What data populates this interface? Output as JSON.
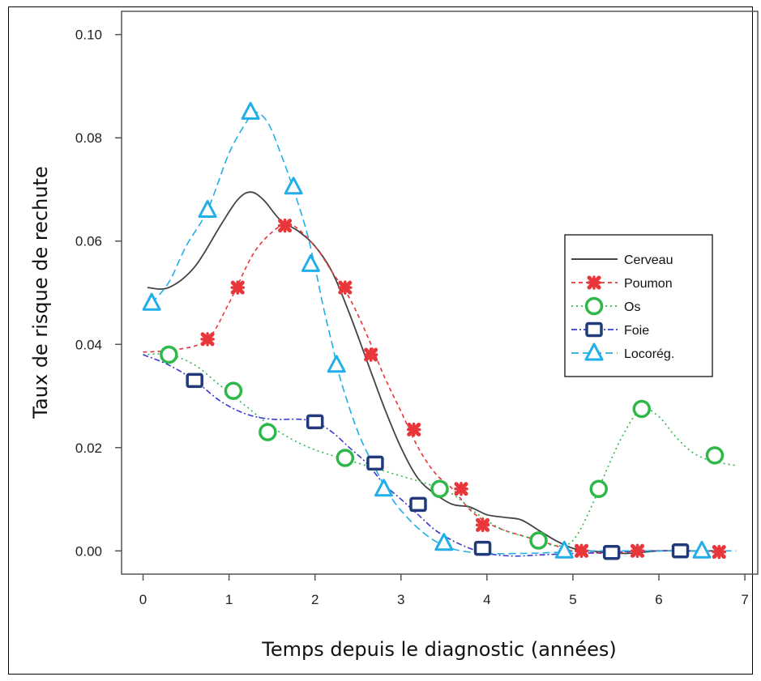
{
  "chart_data": {
    "type": "line",
    "xlabel": "Temps depuis le diagnostic (années)",
    "ylabel": "Taux de risque de rechute",
    "xlim": [
      -0.25,
      7.15
    ],
    "ylim": [
      -0.0045,
      0.1045
    ],
    "xticks": [
      0,
      1,
      2,
      3,
      4,
      5,
      6,
      7
    ],
    "yticks": [
      0.0,
      0.02,
      0.04,
      0.06,
      0.08,
      0.1
    ],
    "ytick_labels": [
      "0.00",
      "0.02",
      "0.04",
      "0.06",
      "0.08",
      "0.10"
    ],
    "legend_position": "right",
    "series": [
      {
        "name": "Cerveau",
        "color": "#444444",
        "dash": "solid",
        "marker": "none",
        "curve": [
          [
            0.05,
            0.051
          ],
          [
            0.3,
            0.051
          ],
          [
            0.6,
            0.055
          ],
          [
            0.9,
            0.063
          ],
          [
            1.1,
            0.068
          ],
          [
            1.25,
            0.0695
          ],
          [
            1.4,
            0.068
          ],
          [
            1.6,
            0.064
          ],
          [
            1.8,
            0.062
          ],
          [
            2.0,
            0.059
          ],
          [
            2.2,
            0.054
          ],
          [
            2.4,
            0.046
          ],
          [
            2.6,
            0.037
          ],
          [
            2.8,
            0.028
          ],
          [
            3.0,
            0.02
          ],
          [
            3.2,
            0.014
          ],
          [
            3.4,
            0.011
          ],
          [
            3.6,
            0.009
          ],
          [
            3.8,
            0.0085
          ],
          [
            4.0,
            0.007
          ],
          [
            4.2,
            0.0065
          ],
          [
            4.4,
            0.006
          ],
          [
            4.6,
            0.004
          ],
          [
            4.8,
            0.002
          ],
          [
            5.0,
            0.0005
          ],
          [
            5.2,
            0.0
          ],
          [
            5.6,
            -0.0005
          ],
          [
            6.0,
            0.0
          ],
          [
            6.4,
            0.0
          ],
          [
            6.7,
            0.0
          ]
        ],
        "points": []
      },
      {
        "name": "Poumon",
        "color": "#e8363b",
        "dash": "5,4",
        "marker": "cross",
        "curve": [
          [
            0.0,
            0.0385
          ],
          [
            0.4,
            0.039
          ],
          [
            0.75,
            0.041
          ],
          [
            1.0,
            0.048
          ],
          [
            1.3,
            0.058
          ],
          [
            1.6,
            0.063
          ],
          [
            1.75,
            0.063
          ],
          [
            2.0,
            0.059
          ],
          [
            2.2,
            0.054
          ],
          [
            2.4,
            0.049
          ],
          [
            2.6,
            0.042
          ],
          [
            2.8,
            0.034
          ],
          [
            3.0,
            0.027
          ],
          [
            3.2,
            0.02
          ],
          [
            3.4,
            0.015
          ],
          [
            3.6,
            0.012
          ],
          [
            3.8,
            0.008
          ],
          [
            4.0,
            0.0055
          ],
          [
            4.2,
            0.004
          ],
          [
            4.4,
            0.003
          ],
          [
            4.6,
            0.002
          ],
          [
            4.8,
            0.001
          ],
          [
            5.0,
            0.0
          ],
          [
            5.4,
            -0.0005
          ],
          [
            5.8,
            0.0
          ],
          [
            6.2,
            0.0
          ],
          [
            6.7,
            0.0
          ]
        ],
        "points": [
          [
            0.75,
            0.041
          ],
          [
            1.1,
            0.051
          ],
          [
            1.65,
            0.063
          ],
          [
            2.35,
            0.051
          ],
          [
            2.65,
            0.038
          ],
          [
            3.15,
            0.0235
          ],
          [
            3.7,
            0.012
          ],
          [
            3.95,
            0.005
          ],
          [
            5.1,
            0.0
          ],
          [
            5.75,
            0.0
          ],
          [
            6.7,
            -0.0002
          ]
        ]
      },
      {
        "name": "Os",
        "color": "#2fb84a",
        "dash": "2,4",
        "marker": "circle",
        "curve": [
          [
            0.0,
            0.038
          ],
          [
            0.3,
            0.038
          ],
          [
            0.6,
            0.036
          ],
          [
            0.9,
            0.032
          ],
          [
            1.2,
            0.028
          ],
          [
            1.5,
            0.024
          ],
          [
            1.8,
            0.021
          ],
          [
            2.1,
            0.019
          ],
          [
            2.4,
            0.0175
          ],
          [
            2.7,
            0.016
          ],
          [
            3.0,
            0.0145
          ],
          [
            3.3,
            0.013
          ],
          [
            3.6,
            0.011
          ],
          [
            3.9,
            0.007
          ],
          [
            4.2,
            0.004
          ],
          [
            4.5,
            0.0025
          ],
          [
            4.8,
            0.001
          ],
          [
            5.0,
            0.002
          ],
          [
            5.2,
            0.008
          ],
          [
            5.4,
            0.016
          ],
          [
            5.6,
            0.023
          ],
          [
            5.8,
            0.0275
          ],
          [
            6.0,
            0.026
          ],
          [
            6.2,
            0.022
          ],
          [
            6.4,
            0.019
          ],
          [
            6.6,
            0.0175
          ],
          [
            6.9,
            0.0165
          ]
        ],
        "points": [
          [
            0.3,
            0.038
          ],
          [
            1.05,
            0.031
          ],
          [
            1.45,
            0.023
          ],
          [
            2.35,
            0.018
          ],
          [
            3.45,
            0.012
          ],
          [
            4.6,
            0.002
          ],
          [
            5.3,
            0.012
          ],
          [
            5.8,
            0.0275
          ],
          [
            6.65,
            0.0185
          ]
        ]
      },
      {
        "name": "Foie",
        "color": "#3a3ad0",
        "dash": "7,3,2,3",
        "marker": "square",
        "curve": [
          [
            0.0,
            0.038
          ],
          [
            0.3,
            0.036
          ],
          [
            0.6,
            0.033
          ],
          [
            0.9,
            0.029
          ],
          [
            1.2,
            0.0265
          ],
          [
            1.5,
            0.0255
          ],
          [
            1.8,
            0.0255
          ],
          [
            2.0,
            0.025
          ],
          [
            2.2,
            0.023
          ],
          [
            2.4,
            0.02
          ],
          [
            2.6,
            0.017
          ],
          [
            2.8,
            0.013
          ],
          [
            3.0,
            0.01
          ],
          [
            3.2,
            0.007
          ],
          [
            3.4,
            0.004
          ],
          [
            3.6,
            0.002
          ],
          [
            3.8,
            0.0005
          ],
          [
            4.0,
            -0.0005
          ],
          [
            4.3,
            -0.001
          ],
          [
            4.6,
            -0.0008
          ],
          [
            5.0,
            -0.0005
          ],
          [
            5.4,
            -0.0003
          ],
          [
            5.8,
            0.0
          ],
          [
            6.3,
            0.0
          ],
          [
            6.6,
            0.0
          ]
        ],
        "points": [
          [
            0.6,
            0.033
          ],
          [
            2.0,
            0.025
          ],
          [
            2.7,
            0.017
          ],
          [
            3.2,
            0.009
          ],
          [
            3.95,
            0.0005
          ],
          [
            5.45,
            -0.0003
          ],
          [
            6.25,
            0.0
          ]
        ]
      },
      {
        "name": "Locorég.",
        "color": "#22aee8",
        "dash": "9,5",
        "marker": "triangle",
        "curve": [
          [
            0.1,
            0.048
          ],
          [
            0.3,
            0.052
          ],
          [
            0.5,
            0.059
          ],
          [
            0.75,
            0.066
          ],
          [
            1.0,
            0.077
          ],
          [
            1.2,
            0.083
          ],
          [
            1.3,
            0.085
          ],
          [
            1.45,
            0.083
          ],
          [
            1.6,
            0.077
          ],
          [
            1.75,
            0.07
          ],
          [
            1.9,
            0.062
          ],
          [
            2.0,
            0.055
          ],
          [
            2.1,
            0.047
          ],
          [
            2.2,
            0.04
          ],
          [
            2.3,
            0.033
          ],
          [
            2.5,
            0.023
          ],
          [
            2.7,
            0.016
          ],
          [
            2.9,
            0.01
          ],
          [
            3.1,
            0.006
          ],
          [
            3.3,
            0.003
          ],
          [
            3.5,
            0.001
          ],
          [
            3.7,
            0.0
          ],
          [
            4.0,
            -0.0005
          ],
          [
            4.4,
            -0.0005
          ],
          [
            4.8,
            -0.0003
          ],
          [
            5.2,
            0.0
          ],
          [
            5.8,
            0.0
          ],
          [
            6.5,
            0.0
          ],
          [
            6.9,
            0.0
          ]
        ],
        "points": [
          [
            0.1,
            0.048
          ],
          [
            0.75,
            0.066
          ],
          [
            1.25,
            0.085
          ],
          [
            1.75,
            0.0705
          ],
          [
            1.95,
            0.0555
          ],
          [
            2.25,
            0.036
          ],
          [
            2.8,
            0.012
          ],
          [
            3.5,
            0.0015
          ],
          [
            4.9,
            0.0
          ],
          [
            6.5,
            0.0
          ]
        ]
      }
    ]
  }
}
